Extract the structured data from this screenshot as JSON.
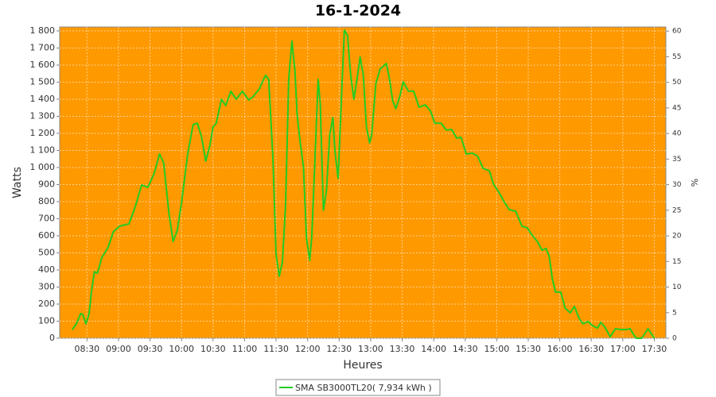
{
  "chart_data": {
    "type": "line",
    "title": "16-1-2024",
    "x_label": "Heures",
    "y_label": "Watts",
    "y2_label": "%",
    "background": "#ff9900",
    "grid": true,
    "xlim": [
      "08:04",
      "17:41"
    ],
    "xticks": [
      "08:30",
      "09:00",
      "09:30",
      "10:00",
      "10:30",
      "11:00",
      "11:30",
      "12:00",
      "12:30",
      "13:00",
      "13:30",
      "14:00",
      "14:30",
      "15:00",
      "15:30",
      "16:00",
      "16:30",
      "17:00",
      "17:30"
    ],
    "ylim": [
      0,
      1823
    ],
    "yticks": [
      0,
      100,
      200,
      300,
      400,
      500,
      600,
      700,
      800,
      900,
      {
        "value": 1000,
        "label": "1 000"
      },
      {
        "value": 1100,
        "label": "1 100"
      },
      {
        "value": 1200,
        "label": "1 200"
      },
      {
        "value": 1300,
        "label": "1 300"
      },
      {
        "value": 1400,
        "label": "1 400"
      },
      {
        "value": 1500,
        "label": "1 500"
      },
      {
        "value": 1600,
        "label": "1 600"
      },
      {
        "value": 1700,
        "label": "1 700"
      },
      {
        "value": 1800,
        "label": "1 800"
      }
    ],
    "y2lim": [
      0,
      60.8
    ],
    "y2ticks": [
      0,
      5,
      10,
      15,
      20,
      25,
      30,
      35,
      40,
      45,
      50,
      55,
      60
    ],
    "x": [
      "08:16",
      "08:20",
      "08:24",
      "08:26",
      "08:29",
      "08:32",
      "08:34",
      "08:37",
      "08:40",
      "08:44",
      "08:50",
      "08:55",
      "09:01",
      "09:10",
      "09:16",
      "09:22",
      "09:28",
      "09:34",
      "09:39",
      "09:43",
      "09:48",
      "09:52",
      "09:56",
      "10:00",
      "10:06",
      "10:11",
      "10:15",
      "10:19",
      "10:23",
      "10:27",
      "10:30",
      "10:33",
      "10:38",
      "10:42",
      "10:47",
      "10:52",
      "10:58",
      "11:04",
      "11:08",
      "11:14",
      "11:17",
      "11:20",
      "11:23",
      "11:27",
      "11:30",
      "11:33",
      "11:36",
      "11:39",
      "11:42",
      "11:45",
      "11:48",
      "11:50",
      "11:53",
      "11:56",
      "11:59",
      "12:02",
      "12:04",
      "12:07",
      "12:10",
      "12:12",
      "12:15",
      "12:18",
      "12:21",
      "12:24",
      "12:26",
      "12:29",
      "12:32",
      "12:35",
      "12:38",
      "12:41",
      "12:44",
      "12:47",
      "12:50",
      "12:53",
      "12:56",
      "12:59",
      "13:01",
      "13:05",
      "13:09",
      "13:15",
      "13:18",
      "13:21",
      "13:24",
      "13:28",
      "13:31",
      "13:36",
      "13:41",
      "13:46",
      "13:52",
      "13:57",
      "14:01",
      "14:07",
      "14:12",
      "14:17",
      "14:22",
      "14:26",
      "14:31",
      "14:37",
      "14:42",
      "14:47",
      "14:53",
      "14:57",
      "15:02",
      "15:07",
      "15:12",
      "15:18",
      "15:24",
      "15:29",
      "15:33",
      "15:39",
      "15:43",
      "15:47",
      "15:50",
      "15:53",
      "15:56",
      "16:01",
      "16:05",
      "16:10",
      "16:14",
      "16:18",
      "16:22",
      "16:27",
      "16:31",
      "16:36",
      "16:39",
      "16:43",
      "16:48",
      "16:53",
      "16:58",
      "17:03",
      "17:07",
      "17:11",
      "17:13",
      "17:18",
      "17:21",
      "17:24",
      "17:27",
      "17:30"
    ],
    "series": [
      {
        "name": "SMA SB3000TL20( 7,934 kWh )",
        "color": "#22cc22",
        "values": [
          50,
          84,
          144,
          140,
          84,
          144,
          260,
          390,
          381,
          470,
          530,
          623,
          656,
          670,
          772,
          898,
          884,
          967,
          1079,
          1028,
          735,
          567,
          633,
          795,
          1084,
          1251,
          1260,
          1181,
          1037,
          1130,
          1237,
          1260,
          1400,
          1363,
          1447,
          1400,
          1447,
          1395,
          1414,
          1460,
          1502,
          1540,
          1516,
          1051,
          493,
          363,
          447,
          772,
          1516,
          1740,
          1563,
          1307,
          1144,
          1005,
          586,
          456,
          595,
          1051,
          1516,
          1377,
          749,
          865,
          1191,
          1293,
          1098,
          935,
          1377,
          1805,
          1772,
          1540,
          1400,
          1516,
          1647,
          1540,
          1237,
          1144,
          1191,
          1493,
          1577,
          1609,
          1516,
          1391,
          1344,
          1423,
          1502,
          1447,
          1447,
          1353,
          1367,
          1330,
          1260,
          1260,
          1219,
          1223,
          1172,
          1177,
          1079,
          1084,
          1065,
          995,
          981,
          902,
          856,
          800,
          753,
          744,
          656,
          647,
          609,
          563,
          516,
          526,
          479,
          344,
          270,
          270,
          177,
          149,
          186,
          121,
          84,
          98,
          74,
          60,
          93,
          65,
          9,
          56,
          51,
          51,
          56,
          14,
          0,
          0,
          28,
          56,
          28,
          0
        ]
      }
    ]
  }
}
